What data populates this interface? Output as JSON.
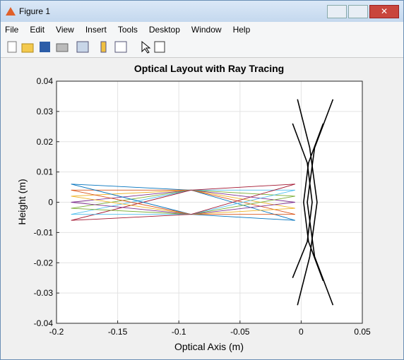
{
  "window": {
    "title": "Figure 1"
  },
  "menu": [
    "File",
    "Edit",
    "View",
    "Insert",
    "Tools",
    "Desktop",
    "Window",
    "Help"
  ],
  "chart_data": {
    "type": "line",
    "title": "Optical Layout with Ray Tracing",
    "x_label": "Optical Axis (m)",
    "y_label": "Height (m)",
    "xlim": [
      -0.2,
      0.05
    ],
    "xticks": [
      -0.2,
      -0.15,
      -0.1,
      -0.05,
      0,
      0.05
    ],
    "ylim": [
      -0.04,
      0.04
    ],
    "yticks": [
      -0.04,
      -0.03,
      -0.02,
      -0.01,
      0,
      0.01,
      0.02,
      0.03,
      0.04
    ],
    "grid": true,
    "series": [
      {
        "color": "#0072BD",
        "x": [
          -0.188,
          -0.09,
          -0.005
        ],
        "values": [
          0.006,
          0.004,
          -0.006
        ]
      },
      {
        "color": "#D95319",
        "x": [
          -0.188,
          -0.09,
          -0.005
        ],
        "values": [
          0.004,
          0.004,
          -0.004
        ]
      },
      {
        "color": "#EDB120",
        "x": [
          -0.188,
          -0.09,
          -0.005
        ],
        "values": [
          0.002,
          0.004,
          -0.002
        ]
      },
      {
        "color": "#7E2F8E",
        "x": [
          -0.188,
          -0.09,
          -0.005
        ],
        "values": [
          0,
          0.004,
          0
        ]
      },
      {
        "color": "#77AC30",
        "x": [
          -0.188,
          -0.09,
          -0.005
        ],
        "values": [
          -0.002,
          0.004,
          0.002
        ]
      },
      {
        "color": "#4DBEEE",
        "x": [
          -0.188,
          -0.09,
          -0.005
        ],
        "values": [
          -0.004,
          0.004,
          0.004
        ]
      },
      {
        "color": "#A2142F",
        "x": [
          -0.188,
          -0.09,
          -0.005
        ],
        "values": [
          -0.006,
          0.004,
          0.006
        ]
      },
      {
        "color": "#0072BD",
        "x": [
          -0.188,
          -0.09,
          -0.005
        ],
        "values": [
          0.006,
          -0.004,
          -0.006
        ]
      },
      {
        "color": "#D95319",
        "x": [
          -0.188,
          -0.09,
          -0.005
        ],
        "values": [
          0.004,
          -0.004,
          -0.004
        ]
      },
      {
        "color": "#EDB120",
        "x": [
          -0.188,
          -0.09,
          -0.005
        ],
        "values": [
          0.002,
          -0.004,
          -0.002
        ]
      },
      {
        "color": "#7E2F8E",
        "x": [
          -0.188,
          -0.09,
          -0.005
        ],
        "values": [
          0,
          -0.004,
          0
        ]
      },
      {
        "color": "#77AC30",
        "x": [
          -0.188,
          -0.09,
          -0.005
        ],
        "values": [
          -0.002,
          -0.004,
          0.002
        ]
      },
      {
        "color": "#4DBEEE",
        "x": [
          -0.188,
          -0.09,
          -0.005
        ],
        "values": [
          -0.004,
          -0.004,
          0.004
        ]
      },
      {
        "color": "#A2142F",
        "x": [
          -0.188,
          -0.09,
          -0.005
        ],
        "values": [
          -0.006,
          -0.004,
          0.006
        ]
      },
      {
        "color": "#000000",
        "x": [
          -0.003,
          0.007,
          0.013,
          0.007,
          -0.003
        ],
        "values": [
          0.034,
          0.018,
          0,
          -0.018,
          -0.034
        ]
      },
      {
        "color": "#000000",
        "x": [
          0.026,
          0.011,
          0.005,
          0.011,
          0.026
        ],
        "values": [
          0.034,
          0.018,
          0,
          -0.018,
          -0.034
        ]
      },
      {
        "color": "#000000",
        "x": [
          -0.007,
          0.005,
          0.009,
          0.005,
          -0.007
        ],
        "values": [
          0.026,
          0.013,
          0,
          -0.013,
          -0.025
        ]
      },
      {
        "color": "#000000",
        "x": [
          0.018,
          0.006,
          0.002,
          0.006,
          0.018
        ],
        "values": [
          0.026,
          0.013,
          0,
          -0.013,
          -0.026
        ]
      }
    ]
  }
}
